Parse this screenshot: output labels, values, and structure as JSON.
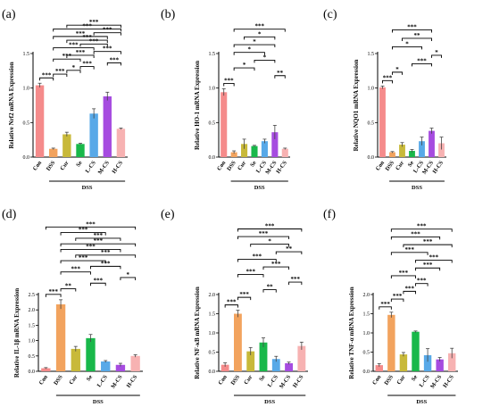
{
  "figure": {
    "categories": [
      "Con",
      "DSS",
      "Cur",
      "Se",
      "L-CS",
      "M-CS",
      "H-CS"
    ],
    "bar_colors": [
      "#f58b8b",
      "#f2a35e",
      "#c8b93a",
      "#19b84a",
      "#58a9e8",
      "#a64ce0",
      "#f7b2b2"
    ],
    "group_label": "DSS"
  },
  "chart_data": [
    {
      "type": "bar",
      "panel": "(a)",
      "ylabel": "Relative Nrf2 mRNA Expression",
      "ylim": [
        0,
        1.5
      ],
      "yticks": [
        "0.0",
        "0.5",
        "1.0",
        "1.5"
      ],
      "categories": [
        "Con",
        "DSS",
        "Cur",
        "Se",
        "L-CS",
        "M-CS",
        "H-CS"
      ],
      "values": [
        1.04,
        0.12,
        0.33,
        0.19,
        0.63,
        0.88,
        0.41
      ],
      "errors": [
        0.03,
        0.01,
        0.03,
        0.01,
        0.07,
        0.06,
        0.01
      ],
      "significance": [
        {
          "from": "Con",
          "to": "DSS",
          "label": "***"
        },
        {
          "from": "DSS",
          "to": "Cur",
          "label": "***"
        },
        {
          "from": "Cur",
          "to": "Se",
          "label": "*"
        },
        {
          "from": "Se",
          "to": "L-CS",
          "label": "***"
        },
        {
          "from": "M-CS",
          "to": "H-CS",
          "label": "***"
        },
        {
          "from": "DSS",
          "to": "Se",
          "label": "***"
        },
        {
          "from": "Cur",
          "to": "L-CS",
          "label": "***"
        },
        {
          "from": "L-CS",
          "to": "H-CS",
          "label": "***"
        },
        {
          "from": "DSS",
          "to": "L-CS",
          "label": "***"
        },
        {
          "from": "Se",
          "to": "M-CS",
          "label": "***"
        },
        {
          "from": "Cur",
          "to": "M-CS",
          "label": "***"
        },
        {
          "from": "DSS",
          "to": "M-CS",
          "label": "***"
        },
        {
          "from": "L-CS",
          "to": "H-CS",
          "label": "***"
        },
        {
          "from": "DSS",
          "to": "H-CS",
          "label": "***"
        },
        {
          "from": "Cur",
          "to": "H-CS",
          "label": "***"
        }
      ]
    },
    {
      "type": "bar",
      "panel": "(b)",
      "ylabel": "Relative HO-1 mRNA Expression",
      "ylim": [
        0,
        1.5
      ],
      "yticks": [
        "0.0",
        "0.5",
        "1.0",
        "1.5"
      ],
      "categories": [
        "Con",
        "DSS",
        "Cur",
        "Se",
        "L-CS",
        "M-CS",
        "H-CS"
      ],
      "values": [
        0.94,
        0.07,
        0.19,
        0.16,
        0.23,
        0.36,
        0.12
      ],
      "errors": [
        0.05,
        0.02,
        0.07,
        0.01,
        0.03,
        0.1,
        0.01
      ],
      "significance": [
        {
          "from": "Con",
          "to": "DSS",
          "label": "***"
        },
        {
          "from": "M-CS",
          "to": "H-CS",
          "label": "**"
        },
        {
          "from": "DSS",
          "to": "Se",
          "label": "*"
        },
        {
          "from": "Se",
          "to": "M-CS",
          "label": "*"
        },
        {
          "from": "DSS",
          "to": "L-CS",
          "label": "*"
        },
        {
          "from": "DSS",
          "to": "M-CS",
          "label": "*"
        },
        {
          "from": "Cur",
          "to": "M-CS",
          "label": "*"
        },
        {
          "from": "DSS",
          "to": "H-CS",
          "label": "***"
        }
      ]
    },
    {
      "type": "bar",
      "panel": "(c)",
      "ylabel": "Relative NQO1 mRNA Expression",
      "ylim": [
        0,
        1.5
      ],
      "yticks": [
        "0.0",
        "0.5",
        "1.0",
        "1.5"
      ],
      "categories": [
        "Con",
        "DSS",
        "Cur",
        "Se",
        "L-CS",
        "M-CS",
        "H-CS"
      ],
      "values": [
        1.01,
        0.07,
        0.18,
        0.09,
        0.23,
        0.38,
        0.2
      ],
      "errors": [
        0.02,
        0.01,
        0.03,
        0.02,
        0.06,
        0.04,
        0.09
      ],
      "significance": [
        {
          "from": "Con",
          "to": "DSS",
          "label": "***"
        },
        {
          "from": "DSS",
          "to": "Cur",
          "label": "*"
        },
        {
          "from": "Se",
          "to": "M-CS",
          "label": "***"
        },
        {
          "from": "M-CS",
          "to": "H-CS",
          "label": "*"
        },
        {
          "from": "DSS",
          "to": "L-CS",
          "label": "*"
        },
        {
          "from": "Cur",
          "to": "M-CS",
          "label": "**"
        },
        {
          "from": "DSS",
          "to": "M-CS",
          "label": "***"
        }
      ]
    },
    {
      "type": "bar",
      "panel": "(d)",
      "ylabel": "Relative IL-1β mRNA Expression",
      "ylim": [
        0,
        2.5
      ],
      "yticks": [
        "0.0",
        "0.5",
        "1.0",
        "1.5",
        "2.0",
        "2.5"
      ],
      "categories": [
        "Con",
        "DSS",
        "Cur",
        "Se",
        "L-CS",
        "M-CS",
        "H-CS"
      ],
      "values": [
        0.1,
        2.18,
        0.73,
        1.08,
        0.32,
        0.21,
        0.5
      ],
      "errors": [
        0.02,
        0.15,
        0.08,
        0.12,
        0.03,
        0.05,
        0.04
      ],
      "significance": [
        {
          "from": "Con",
          "to": "DSS",
          "label": "***"
        },
        {
          "from": "DSS",
          "to": "Cur",
          "label": "**"
        },
        {
          "from": "Se",
          "to": "L-CS",
          "label": "***"
        },
        {
          "from": "M-CS",
          "to": "H-CS",
          "label": "*"
        },
        {
          "from": "DSS",
          "to": "Se",
          "label": "***"
        },
        {
          "from": "Se",
          "to": "M-CS",
          "label": "***"
        },
        {
          "from": "DSS",
          "to": "L-CS",
          "label": "***"
        },
        {
          "from": "Cur",
          "to": "H-CS",
          "label": "***"
        },
        {
          "from": "DSS",
          "to": "M-CS",
          "label": "***"
        },
        {
          "from": "DSS",
          "to": "H-CS",
          "label": "***"
        },
        {
          "from": "Cur",
          "to": "M-CS",
          "label": "***"
        },
        {
          "from": "DSS",
          "to": "L-CS",
          "label": "***"
        },
        {
          "from": "Con",
          "to": "H-CS",
          "label": "***"
        }
      ]
    },
    {
      "type": "bar",
      "panel": "(e)",
      "ylabel": "Relative NF-κB mRNA Expression",
      "ylim": [
        0,
        2.0
      ],
      "yticks": [
        "0.0",
        "0.5",
        "1.0",
        "1.5",
        "2.0"
      ],
      "categories": [
        "Con",
        "DSS",
        "Cur",
        "Se",
        "L-CS",
        "M-CS",
        "H-CS"
      ],
      "values": [
        0.17,
        1.5,
        0.52,
        0.75,
        0.32,
        0.21,
        0.66
      ],
      "errors": [
        0.05,
        0.09,
        0.1,
        0.12,
        0.07,
        0.03,
        0.1
      ],
      "significance": [
        {
          "from": "Con",
          "to": "DSS",
          "label": "***"
        },
        {
          "from": "DSS",
          "to": "Cur",
          "label": "***"
        },
        {
          "from": "Se",
          "to": "L-CS",
          "label": "**"
        },
        {
          "from": "M-CS",
          "to": "H-CS",
          "label": "***"
        },
        {
          "from": "DSS",
          "to": "Se",
          "label": "***"
        },
        {
          "from": "Se",
          "to": "M-CS",
          "label": "***"
        },
        {
          "from": "DSS",
          "to": "L-CS",
          "label": "***"
        },
        {
          "from": "L-CS",
          "to": "H-CS",
          "label": "**"
        },
        {
          "from": "Cur",
          "to": "M-CS",
          "label": "*"
        },
        {
          "from": "DSS",
          "to": "M-CS",
          "label": "***"
        },
        {
          "from": "DSS",
          "to": "H-CS",
          "label": "***"
        }
      ]
    },
    {
      "type": "bar",
      "panel": "(f)",
      "ylabel": "Relative TNF-α mRNA Expression",
      "ylim": [
        0,
        2.0
      ],
      "yticks": [
        "0.0",
        "0.5",
        "1.0",
        "1.5",
        "2.0"
      ],
      "categories": [
        "Con",
        "DSS",
        "Cur",
        "Se",
        "L-CS",
        "M-CS",
        "H-CS"
      ],
      "values": [
        0.16,
        1.47,
        0.44,
        1.03,
        0.42,
        0.31,
        0.47
      ],
      "errors": [
        0.04,
        0.07,
        0.05,
        0.02,
        0.17,
        0.05,
        0.13
      ],
      "significance": [
        {
          "from": "Con",
          "to": "DSS",
          "label": "***"
        },
        {
          "from": "DSS",
          "to": "Cur",
          "label": "***"
        },
        {
          "from": "Cur",
          "to": "Se",
          "label": "***"
        },
        {
          "from": "Se",
          "to": "L-CS",
          "label": "***"
        },
        {
          "from": "DSS",
          "to": "Se",
          "label": "***"
        },
        {
          "from": "Se",
          "to": "M-CS",
          "label": "***"
        },
        {
          "from": "Se",
          "to": "H-CS",
          "label": "***"
        },
        {
          "from": "DSS",
          "to": "L-CS",
          "label": "***"
        },
        {
          "from": "Cur",
          "to": "H-CS",
          "label": "***"
        },
        {
          "from": "DSS",
          "to": "M-CS",
          "label": "***"
        },
        {
          "from": "DSS",
          "to": "H-CS",
          "label": "***"
        }
      ]
    }
  ]
}
